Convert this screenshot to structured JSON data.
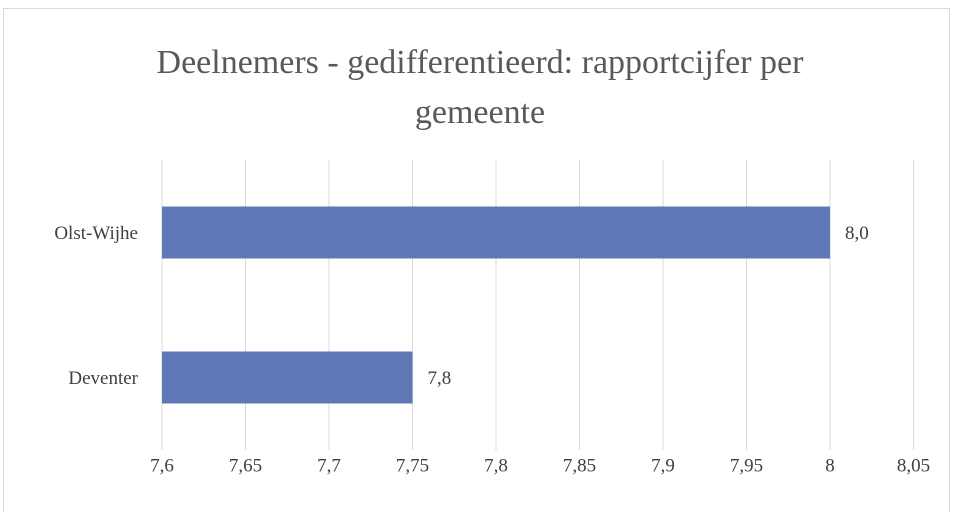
{
  "chart_data": {
    "type": "hbar",
    "title": "Deelnemers - gedifferentieerd: rapportcijfer per gemeente",
    "categories": [
      "Olst-Wijhe",
      "Deventer"
    ],
    "values": [
      8,
      7.75
    ],
    "value_labels": [
      "8,0",
      "7,8"
    ],
    "color": "#5f77b5",
    "xlim": [
      7.6,
      8.05
    ],
    "xticks": [
      {
        "value": 7.6,
        "label": "7,6"
      },
      {
        "value": 7.65,
        "label": "7,65"
      },
      {
        "value": 7.7,
        "label": "7,7"
      },
      {
        "value": 7.75,
        "label": "7,75"
      },
      {
        "value": 7.8,
        "label": "7,8"
      },
      {
        "value": 7.85,
        "label": "7,85"
      },
      {
        "value": 7.9,
        "label": "7,9"
      },
      {
        "value": 7.95,
        "label": "7,95"
      },
      8,
      {
        "value": 8.05,
        "label": "8,05"
      }
    ],
    "grid": true
  }
}
